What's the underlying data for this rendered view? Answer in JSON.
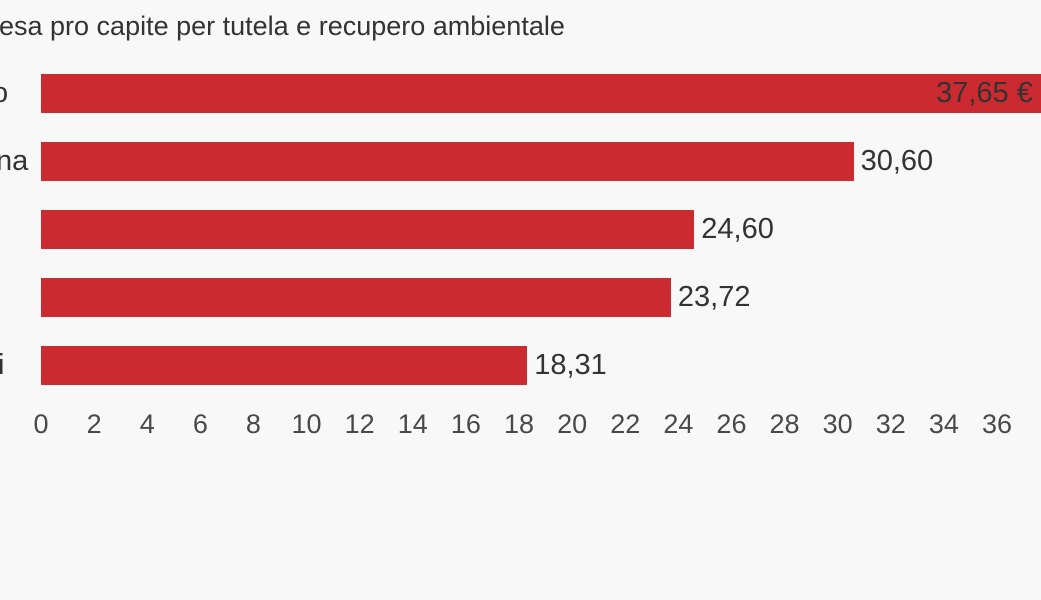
{
  "chart_data": {
    "type": "bar",
    "orientation": "horizontal",
    "title_visible": "esa pro capite per tutela e recupero ambientale",
    "unit": "€",
    "number_format": "decimal-comma",
    "bars": [
      {
        "category_visible": "o",
        "value": 37.65,
        "label": "37,65 €",
        "label_position": "inside"
      },
      {
        "category_visible": "na",
        "value": 30.6,
        "label": "30,60",
        "label_position": "outside"
      },
      {
        "category_visible": "",
        "value": 24.6,
        "label": "24,60",
        "label_position": "outside"
      },
      {
        "category_visible": "",
        "value": 23.72,
        "label": "23,72",
        "label_position": "outside"
      },
      {
        "category_visible": "i",
        "value": 18.31,
        "label": "18,31",
        "label_position": "outside"
      }
    ],
    "x_axis": {
      "min": 0,
      "max": 36,
      "ticks": [
        0,
        2,
        4,
        6,
        8,
        10,
        12,
        14,
        16,
        18,
        20,
        22,
        24,
        26,
        28,
        30,
        32,
        34,
        36
      ],
      "gridlines": false,
      "axis_line": false
    },
    "colors": {
      "bar": "#cb2a31",
      "background": "#f8f8f8",
      "text": "#333333",
      "axis_text": "#494949"
    },
    "notes": {
      "left_edge_cropped": "title and category labels are cut off at the left edge of the screenshot",
      "first_bar_cropped": "first bar and its € suffix extend past the right edge"
    }
  }
}
